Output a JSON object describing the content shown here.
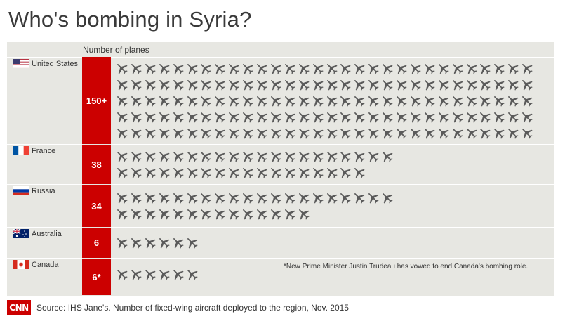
{
  "title": "Who's bombing in Syria?",
  "column_header": "Number of planes",
  "note": "*New Prime Minister Justin Trudeau has vowed to end Canada's bombing role.",
  "source": "Source: IHS Jane's. Number of fixed-wing aircraft deployed to the region, Nov. 2015",
  "brand": "CNN",
  "colors": {
    "accent": "#cc0000",
    "plane": "#5a5a5a",
    "panel": "#e7e7e2"
  },
  "chart_data": {
    "type": "bar",
    "title": "Who's bombing in Syria?",
    "value_label": "Number of planes",
    "categories": [
      "United States",
      "France",
      "Russia",
      "Australia",
      "Canada"
    ],
    "labels": [
      "150+",
      "38",
      "34",
      "6",
      "6*"
    ],
    "values": [
      150,
      38,
      34,
      6,
      6
    ],
    "icons_shown": [
      150,
      38,
      34,
      6,
      6
    ],
    "icon": "plane-icon"
  }
}
